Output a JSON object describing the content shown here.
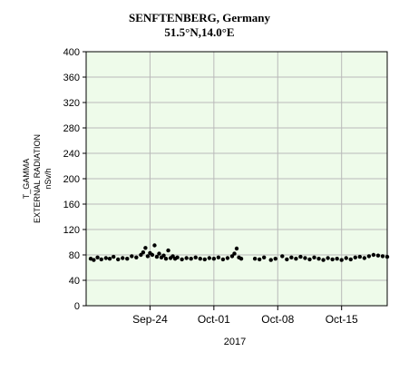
{
  "chart_data": {
    "type": "scatter",
    "title": "SENFTENBERG, Germany",
    "subtitle": "51.5°N,14.0°E",
    "ylabel_lines": [
      "T_GAMMA",
      "EXTERNAL RADIATION",
      "nSv/h"
    ],
    "xlabel": "2017",
    "ylim": [
      0,
      400
    ],
    "yticks": [
      0,
      40,
      80,
      120,
      160,
      200,
      240,
      280,
      320,
      360,
      400
    ],
    "x_range": [
      "2017-09-17",
      "2017-10-20"
    ],
    "xticks": [
      {
        "date": "2017-09-24",
        "label": "Sep-24"
      },
      {
        "date": "2017-10-01",
        "label": "Oct-01"
      },
      {
        "date": "2017-10-08",
        "label": "Oct-08"
      },
      {
        "date": "2017-10-15",
        "label": "Oct-15"
      }
    ],
    "grid": true,
    "colors": {
      "plot_background": "#eefbea",
      "grid": "#b9b9b9",
      "points": "#000000"
    },
    "series": [
      {
        "x": [
          "2017-09-17 12:00",
          "2017-09-17 20:00",
          "2017-09-18 06:00",
          "2017-09-18 16:00",
          "2017-09-19 04:00",
          "2017-09-19 14:00",
          "2017-09-20 00:00",
          "2017-09-20 12:00",
          "2017-09-21 00:00",
          "2017-09-21 12:00",
          "2017-09-22 00:00",
          "2017-09-22 12:00",
          "2017-09-23 00:00",
          "2017-09-23 06:00",
          "2017-09-23 12:00",
          "2017-09-23 18:00",
          "2017-09-24 00:00",
          "2017-09-24 06:00",
          "2017-09-24 12:00",
          "2017-09-24 18:00",
          "2017-09-25 00:00",
          "2017-09-25 06:00",
          "2017-09-25 12:00",
          "2017-09-25 18:00",
          "2017-09-26 00:00",
          "2017-09-26 06:00",
          "2017-09-26 12:00",
          "2017-09-26 18:00",
          "2017-09-27 00:00",
          "2017-09-27 12:00",
          "2017-09-28 00:00",
          "2017-09-28 12:00",
          "2017-09-29 00:00",
          "2017-09-29 12:00",
          "2017-09-30 00:00",
          "2017-09-30 12:00",
          "2017-10-01 00:00",
          "2017-10-01 12:00",
          "2017-10-02 00:00",
          "2017-10-02 12:00",
          "2017-10-03 00:00",
          "2017-10-03 06:00",
          "2017-10-03 12:00",
          "2017-10-03 18:00",
          "2017-10-04 00:00",
          "2017-10-05 12:00",
          "2017-10-06 00:00",
          "2017-10-06 12:00",
          "2017-10-07 06:00",
          "2017-10-07 18:00",
          "2017-10-08 12:00",
          "2017-10-09 00:00",
          "2017-10-09 12:00",
          "2017-10-10 00:00",
          "2017-10-10 12:00",
          "2017-10-11 00:00",
          "2017-10-11 12:00",
          "2017-10-12 00:00",
          "2017-10-12 12:00",
          "2017-10-13 00:00",
          "2017-10-13 12:00",
          "2017-10-14 00:00",
          "2017-10-14 12:00",
          "2017-10-15 00:00",
          "2017-10-15 12:00",
          "2017-10-16 00:00",
          "2017-10-16 12:00",
          "2017-10-17 00:00",
          "2017-10-17 12:00",
          "2017-10-18 00:00",
          "2017-10-18 12:00",
          "2017-10-19 00:00",
          "2017-10-19 12:00",
          "2017-10-20 00:00"
        ],
        "y": [
          74,
          72,
          76,
          73,
          75,
          74,
          77,
          73,
          75,
          74,
          78,
          76,
          80,
          84,
          91,
          78,
          83,
          80,
          95,
          77,
          82,
          76,
          79,
          74,
          87,
          75,
          78,
          74,
          76,
          73,
          75,
          74,
          76,
          74,
          73,
          75,
          74,
          76,
          73,
          75,
          78,
          82,
          90,
          76,
          74,
          74,
          73,
          76,
          72,
          74,
          78,
          73,
          76,
          74,
          77,
          75,
          73,
          76,
          74,
          72,
          75,
          73,
          74,
          72,
          75,
          73,
          76,
          77,
          75,
          78,
          80,
          79,
          78,
          77
        ]
      }
    ]
  }
}
